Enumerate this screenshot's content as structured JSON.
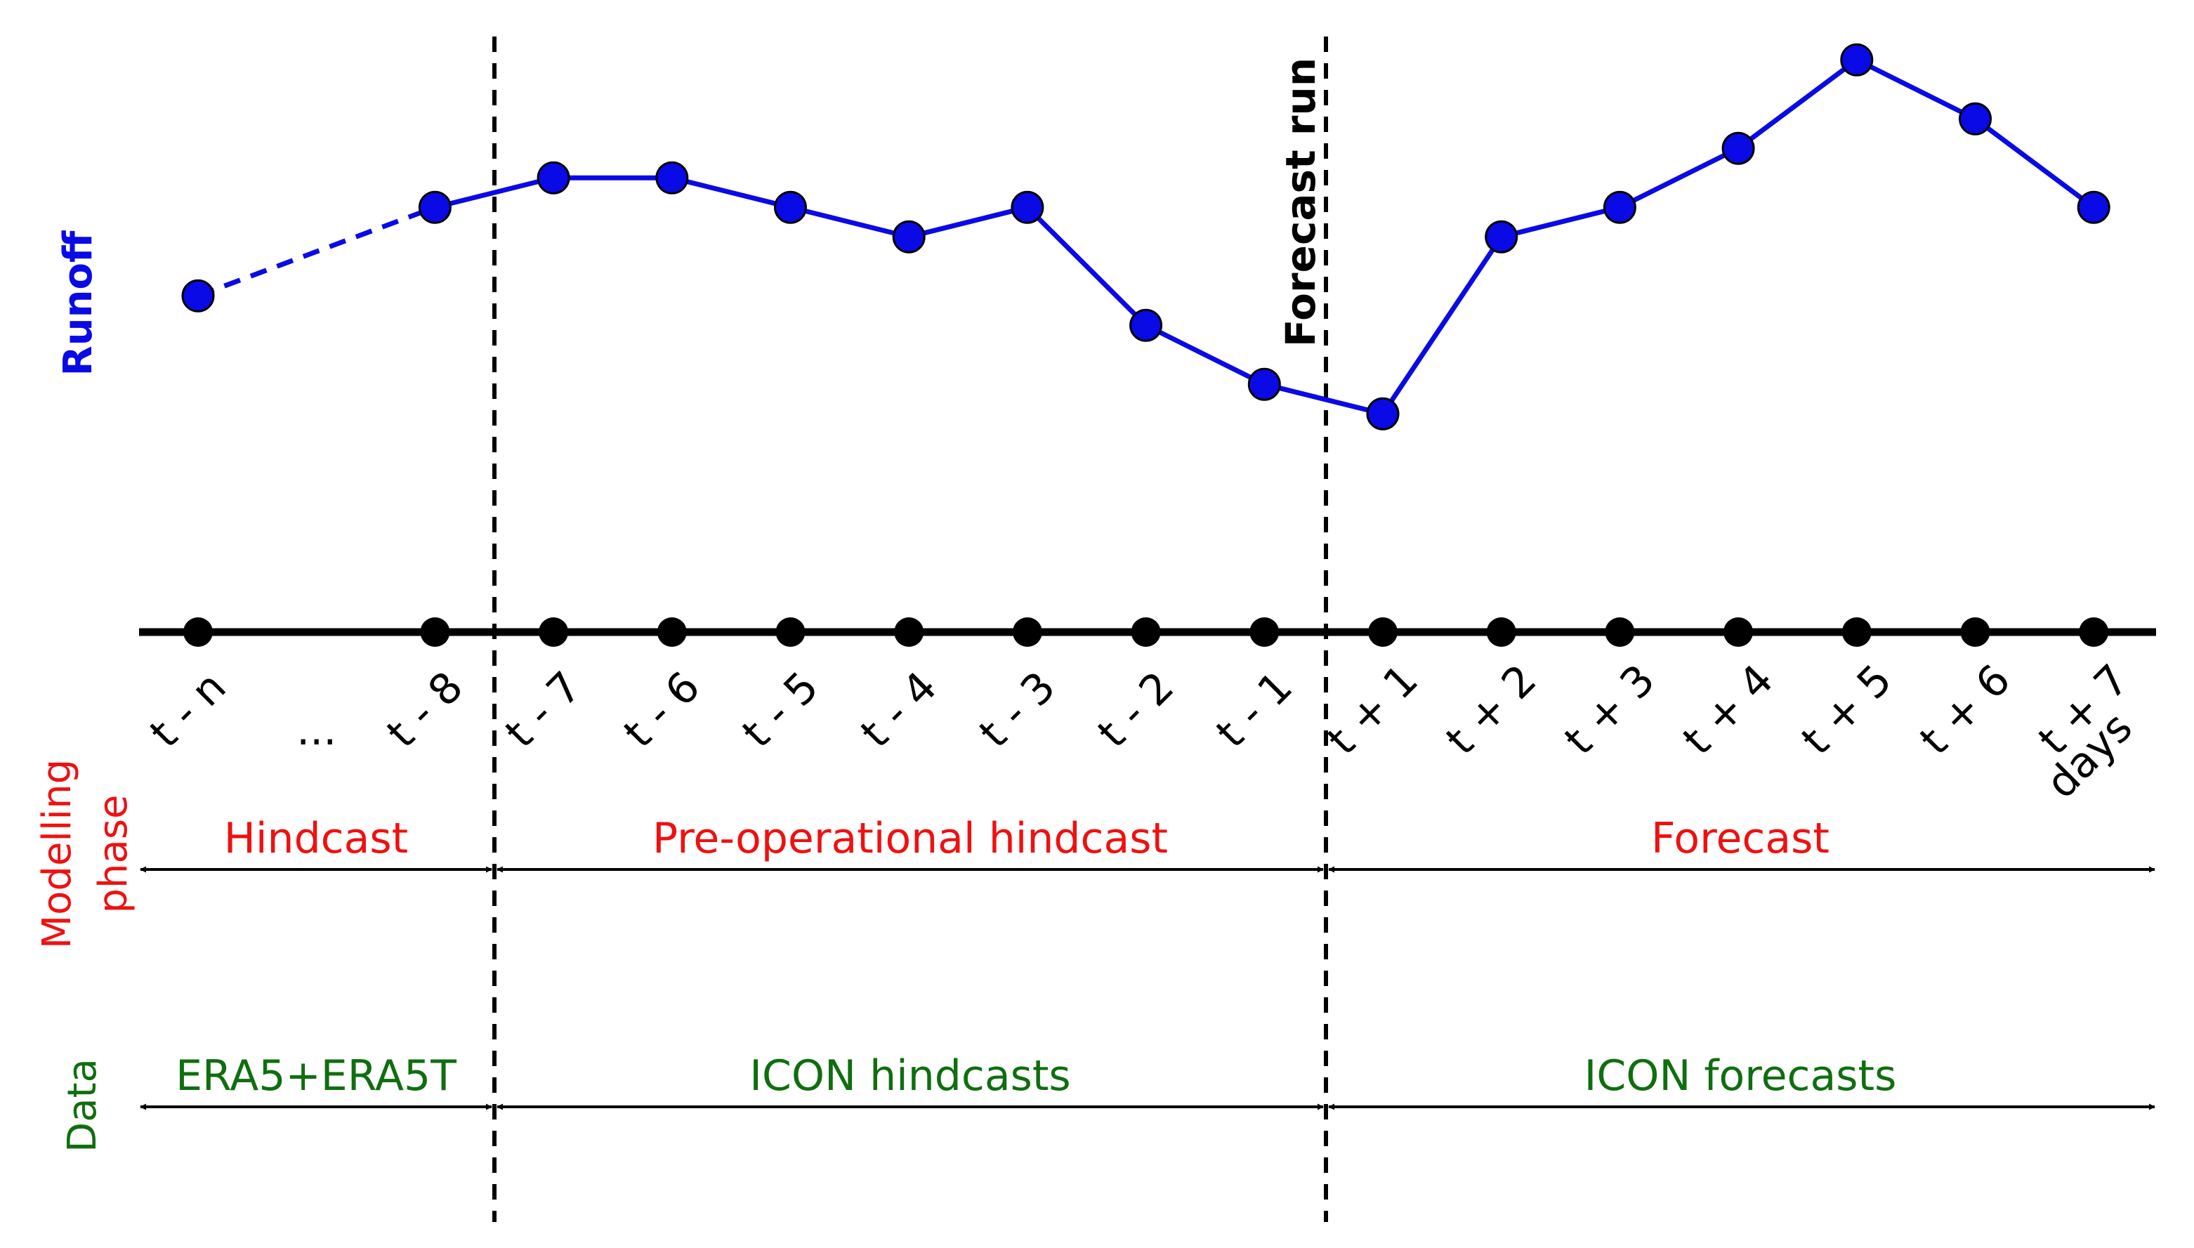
{
  "colors": {
    "runoff": "#0a0ae6",
    "phase": "#ee1111",
    "data": "#0f6e0f",
    "axis": "#000000"
  },
  "labels": {
    "runoff_axis": "Runoff",
    "forecast_run": "Forecast run",
    "modelling_phase": [
      "Modelling",
      "phase"
    ],
    "data_axis": "Data"
  },
  "timeline": {
    "ticks": [
      "t - n",
      "...",
      "t - 8",
      "t - 7",
      "t - 6",
      "t - 5",
      "t - 4",
      "t - 3",
      "t - 2",
      "t - 1",
      "t + 1",
      "t + 2",
      "t + 3",
      "t + 4",
      "t + 5",
      "t + 6",
      "t + 7"
    ],
    "unit": "days"
  },
  "phases": [
    {
      "label": "Hindcast"
    },
    {
      "label": "Pre-operational hindcast"
    },
    {
      "label": "Forecast"
    }
  ],
  "data_sources": [
    {
      "label": "ERA5+ERA5T"
    },
    {
      "label": "ICON hindcasts"
    },
    {
      "label": "ICON forecasts"
    }
  ],
  "chart_data": {
    "type": "line",
    "x": [
      "t - n",
      "t - 8",
      "t - 7",
      "t - 6",
      "t - 5",
      "t - 4",
      "t - 3",
      "t - 2",
      "t - 1",
      "t + 1",
      "t + 2",
      "t + 3",
      "t + 4",
      "t + 5",
      "t + 6",
      "t + 7"
    ],
    "series": [
      {
        "name": "Runoff",
        "values": [
          0.57,
          0.72,
          0.77,
          0.77,
          0.72,
          0.67,
          0.72,
          0.52,
          0.42,
          0.37,
          0.67,
          0.72,
          0.82,
          0.97,
          0.87,
          0.72
        ]
      }
    ],
    "dashed_segments": [
      [
        0,
        1
      ]
    ],
    "ylabel": "Runoff"
  }
}
